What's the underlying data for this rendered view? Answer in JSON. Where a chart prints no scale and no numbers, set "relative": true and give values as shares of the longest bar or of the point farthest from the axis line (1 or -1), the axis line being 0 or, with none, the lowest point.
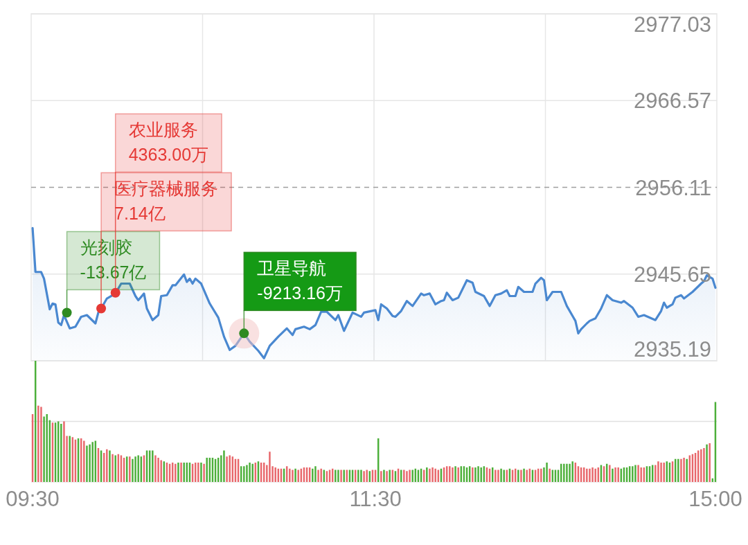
{
  "chart_data": [
    {
      "type": "area",
      "ylim": [
        2935.19,
        2977.03
      ],
      "categories": [
        null,
        null,
        null,
        null,
        null,
        null,
        null,
        null,
        null,
        null,
        null,
        null,
        null,
        null,
        null,
        null,
        null,
        null,
        null,
        null,
        null,
        null,
        null,
        null,
        null,
        null,
        null,
        null,
        null,
        null,
        null,
        null,
        null,
        null,
        null,
        null,
        null,
        null,
        null,
        null,
        null,
        null,
        null,
        null,
        null,
        null,
        null,
        null,
        null,
        null,
        null,
        null,
        null,
        null,
        null,
        null,
        null,
        null,
        null,
        null,
        null,
        null,
        null,
        null,
        null,
        null,
        null,
        null,
        null,
        null,
        null,
        null,
        null,
        null,
        null,
        null,
        null,
        null,
        null,
        null,
        null,
        null,
        null,
        null,
        null,
        null,
        null,
        null,
        null,
        null,
        null,
        null,
        null,
        null,
        null,
        null,
        null,
        null,
        null,
        null,
        null,
        null,
        null,
        null,
        null,
        null,
        null,
        null,
        null,
        null,
        null,
        null,
        null,
        null,
        null,
        null,
        null,
        null,
        null,
        null,
        null,
        null,
        null,
        null,
        null,
        null,
        null,
        null,
        null,
        null,
        null,
        null,
        null,
        null,
        null,
        null,
        null,
        null,
        null,
        null,
        null,
        null,
        null,
        null,
        null,
        null,
        null,
        null,
        null,
        null,
        null,
        null,
        null,
        null,
        null,
        null,
        null,
        null,
        null,
        null,
        null,
        null,
        null,
        null,
        null,
        null,
        null,
        null,
        null,
        null,
        null,
        null,
        null,
        null,
        null,
        null,
        null,
        null,
        null,
        null,
        null,
        null,
        null,
        null,
        null,
        null,
        null,
        null,
        null,
        null,
        null,
        null,
        null,
        null,
        null,
        null,
        null,
        null,
        null,
        null,
        null,
        null,
        null,
        null,
        null,
        null,
        null,
        null,
        null,
        null,
        null,
        null,
        null,
        null,
        null,
        null,
        null,
        null,
        null,
        null,
        null,
        null,
        null,
        null,
        null,
        null,
        null,
        null,
        null,
        null,
        null,
        null,
        null,
        null,
        null,
        null,
        null,
        null,
        null,
        null
      ],
      "yticks": [
        2935.19,
        2945.65,
        2956.11,
        2966.57,
        2977.03
      ],
      "tick_labels": "y",
      "grid": true,
      "ref_lines": [
        {
          "axis": "y",
          "value": 2956.11,
          "color": "#9e9e9e",
          "line_style": "dashed"
        }
      ],
      "series": [
        {
          "color": "#4a88d0",
          "values": [
            2951.2,
            2945.9,
            null,
            2945.9,
            2945.1,
            null,
            2941.4,
            2942.1,
            2942.0,
            2939.8,
            2939.5,
            2940.7,
            null,
            2939.1,
            null,
            2939.3,
            null,
            2940.5,
            null,
            2940.7,
            null,
            null,
            2939.7,
            2941.0,
            2941.5,
            null,
            2942.7,
            null,
            null,
            2943.3,
            null,
            2944.5,
            null,
            2944.5,
            2944.5,
            null,
            2943.0,
            2942.5,
            null,
            2943.3,
            2941.5,
            null,
            2940.1,
            null,
            2940.7,
            2943.0,
            null,
            2943.1,
            null,
            2944.3,
            2944.3,
            null,
            null,
            2945.6,
            2944.7,
            2945.1,
            2944.5,
            2945.1,
            null,
            2944.5,
            null,
            null,
            2942.1,
            null,
            null,
            2940.4,
            null,
            2938.1,
            null,
            2936.5,
            null,
            2937.0,
            null,
            null,
            2938.5,
            null,
            2937.5,
            null,
            null,
            2936.4,
            null,
            2935.5,
            null,
            2937.0,
            null,
            null,
            2938.1,
            null,
            null,
            2939.1,
            null,
            2938.3,
            2939.0,
            null,
            null,
            2939.3,
            null,
            2939.0,
            null,
            2939.5,
            null,
            2941.1,
            null,
            2941.1,
            null,
            null,
            2940.1,
            2940.7,
            null,
            2938.8,
            null,
            null,
            2941.0,
            null,
            null,
            2940.5,
            2941.0,
            null,
            null,
            null,
            2941.3,
            2940.1,
            2942.0,
            null,
            2941.5,
            null,
            2940.6,
            2940.5,
            null,
            2941.2,
            null,
            2942.4,
            null,
            2941.8,
            null,
            null,
            2943.3,
            2943.1,
            null,
            2943.3,
            null,
            2942.0,
            null,
            2942.4,
            2942.5,
            2943.4,
            null,
            2942.5,
            null,
            2942.8,
            null,
            null,
            2944.9,
            null,
            2944.6,
            2943.5,
            null,
            null,
            2943.0,
            null,
            2941.8,
            null,
            2943.1,
            null,
            2943.3,
            null,
            2943.7,
            2943.0,
            null,
            2943.0,
            2944.1,
            null,
            2943.5,
            null,
            null,
            2943.5,
            2944.5,
            null,
            2945.2,
            2944.9,
            2942.5,
            null,
            2943.5,
            null,
            null,
            2943.5,
            null,
            2941.8,
            null,
            2940.6,
            2940.0,
            2938.5,
            2939.0,
            null,
            2939.7,
            2940.0,
            null,
            2940.3,
            null,
            2941.5,
            null,
            2943.1,
            null,
            2942.5,
            null,
            null,
            2942.2,
            2942.4,
            null,
            null,
            2941.6,
            null,
            2940.5,
            null,
            2940.7,
            null,
            null,
            null,
            2940.1,
            null,
            2941.2,
            2942.2,
            2941.6,
            null,
            2942.0,
            2942.8,
            null,
            2943.1,
            2942.7,
            null,
            null,
            2943.5,
            null,
            null,
            2944.5,
            2944.8,
            2945.5,
            null,
            2945.1,
            2944.0
          ]
        },
        {
          "type": "scatter",
          "color": "#2e8a22",
          "values": [
            null,
            null,
            null,
            null,
            null,
            null,
            null,
            null,
            null,
            null,
            null,
            null,
            2941.0,
            null,
            null,
            null,
            null,
            null,
            null,
            null,
            null,
            null,
            null,
            null,
            null,
            null,
            null,
            null,
            null,
            null,
            null,
            null,
            null,
            null,
            null,
            null,
            null,
            null,
            null,
            null,
            null,
            null,
            null,
            null,
            null,
            null,
            null,
            null,
            null,
            null,
            null,
            null,
            null,
            null,
            null,
            null,
            null,
            null,
            null,
            null,
            null,
            null,
            null,
            null,
            null,
            null,
            null,
            null,
            null,
            null,
            null,
            null,
            null,
            null,
            2938.5,
            null,
            null,
            null,
            null,
            null,
            null,
            null,
            null,
            null,
            null,
            null,
            null,
            null,
            null,
            null,
            null,
            null,
            null,
            null,
            null,
            null,
            null,
            null,
            null,
            null,
            null,
            null,
            null,
            null,
            null,
            null,
            null,
            null,
            null,
            null,
            null,
            null,
            null,
            null,
            null,
            null,
            null,
            null,
            null,
            null,
            null,
            null,
            null,
            null,
            null,
            null,
            null,
            null,
            null,
            null,
            null,
            null,
            null,
            null,
            null,
            null,
            null,
            null,
            null,
            null,
            null,
            null,
            null,
            null,
            null,
            null,
            null,
            null,
            null,
            null,
            null,
            null,
            null,
            null,
            null,
            null,
            null,
            null,
            null,
            null,
            null,
            null,
            null,
            null,
            null,
            null,
            null,
            null,
            null,
            null,
            null,
            null,
            null,
            null,
            null,
            null,
            null,
            null,
            null,
            null,
            null,
            null,
            null,
            null,
            null,
            null,
            null,
            null,
            null,
            null,
            null,
            null,
            null,
            null,
            null,
            null,
            null,
            null,
            null,
            null,
            null,
            null,
            null,
            null,
            null,
            null,
            null,
            null,
            null,
            null,
            null,
            null,
            null,
            null,
            null,
            null,
            null,
            null,
            null,
            null,
            null,
            null,
            null,
            null,
            null,
            null,
            null,
            null,
            null,
            null,
            null,
            null,
            null,
            null,
            null,
            null,
            null,
            null,
            null,
            null
          ]
        },
        {
          "type": "scatter",
          "color": "#e53935",
          "values": [
            null,
            null,
            null,
            null,
            null,
            null,
            null,
            null,
            null,
            null,
            null,
            null,
            null,
            null,
            null,
            null,
            null,
            null,
            null,
            null,
            null,
            null,
            null,
            null,
            2941.5,
            null,
            null,
            null,
            null,
            2943.4,
            null,
            null,
            null,
            null,
            null,
            null,
            null,
            null,
            null,
            null,
            null,
            null,
            null,
            null,
            null,
            null,
            null,
            null,
            null,
            null,
            null,
            null,
            null,
            null,
            null,
            null,
            null,
            null,
            null,
            null,
            null,
            null,
            null,
            null,
            null,
            null,
            null,
            null,
            null,
            null,
            null,
            null,
            null,
            null,
            null,
            null,
            null,
            null,
            null,
            null,
            null,
            null,
            null,
            null,
            null,
            null,
            null,
            null,
            null,
            null,
            null,
            null,
            null,
            null,
            null,
            null,
            null,
            null,
            null,
            null,
            null,
            null,
            null,
            null,
            null,
            null,
            null,
            null,
            null,
            null,
            null,
            null,
            null,
            null,
            null,
            null,
            null,
            null,
            null,
            null,
            null,
            null,
            null,
            null,
            null,
            null,
            null,
            null,
            null,
            null,
            null,
            null,
            null,
            null,
            null,
            null,
            null,
            null,
            null,
            null,
            null,
            null,
            null,
            null,
            null,
            null,
            null,
            null,
            null,
            null,
            null,
            null,
            null,
            null,
            null,
            null,
            null,
            null,
            null,
            null,
            null,
            null,
            null,
            null,
            null,
            null,
            null,
            null,
            null,
            null,
            null,
            null,
            null,
            null,
            null,
            null,
            null,
            null,
            null,
            null,
            null,
            null,
            null,
            null,
            null,
            null,
            null,
            null,
            null,
            null,
            null,
            null,
            null,
            null,
            null,
            null,
            null,
            null,
            null,
            null,
            null,
            null,
            null,
            null,
            null,
            null,
            null,
            null,
            null,
            null,
            null,
            null,
            null,
            null,
            null,
            null,
            null,
            null,
            null,
            null,
            null,
            null,
            null,
            null,
            null,
            null,
            null,
            null,
            null,
            null,
            null,
            null,
            null,
            null,
            null,
            null,
            null,
            null,
            null,
            null
          ]
        }
      ],
      "annotations": [
        "光刻胶\n-13.67亿",
        "医疗器械服务\n7.14亿",
        "农业服务\n4363.00万",
        "卫星导航\n-9213.16万"
      ]
    },
    {
      "type": "bar",
      "relative": true,
      "categories": [
        "09:30",
        null,
        null,
        null,
        null,
        null,
        null,
        null,
        null,
        null,
        null,
        null,
        null,
        null,
        null,
        null,
        null,
        null,
        null,
        null,
        null,
        null,
        null,
        null,
        null,
        null,
        null,
        null,
        null,
        null,
        null,
        null,
        null,
        null,
        null,
        null,
        null,
        null,
        null,
        null,
        null,
        null,
        null,
        null,
        null,
        null,
        null,
        null,
        null,
        null,
        null,
        null,
        null,
        null,
        null,
        null,
        null,
        null,
        null,
        null,
        null,
        null,
        null,
        null,
        null,
        null,
        null,
        null,
        null,
        null,
        null,
        null,
        null,
        null,
        null,
        null,
        null,
        null,
        null,
        null,
        null,
        null,
        null,
        null,
        null,
        null,
        null,
        null,
        null,
        null,
        null,
        null,
        null,
        null,
        null,
        null,
        null,
        null,
        null,
        null,
        null,
        null,
        null,
        null,
        null,
        null,
        null,
        null,
        null,
        null,
        null,
        null,
        null,
        null,
        null,
        null,
        null,
        null,
        null,
        null,
        "11:30",
        null,
        null,
        null,
        null,
        null,
        null,
        null,
        null,
        null,
        null,
        null,
        null,
        null,
        null,
        null,
        null,
        null,
        null,
        null,
        null,
        null,
        null,
        null,
        null,
        null,
        null,
        null,
        null,
        null,
        null,
        null,
        null,
        null,
        null,
        null,
        null,
        null,
        null,
        null,
        null,
        null,
        null,
        null,
        null,
        null,
        null,
        null,
        null,
        null,
        null,
        null,
        null,
        null,
        null,
        null,
        null,
        null,
        null,
        null,
        null,
        null,
        null,
        null,
        null,
        null,
        null,
        null,
        null,
        null,
        null,
        null,
        null,
        null,
        null,
        null,
        null,
        null,
        null,
        null,
        null,
        null,
        null,
        null,
        null,
        null,
        null,
        null,
        null,
        null,
        null,
        null,
        null,
        null,
        null,
        null,
        null,
        null,
        null,
        null,
        null,
        null,
        null,
        null,
        null,
        null,
        null,
        null,
        null,
        null,
        null,
        null,
        null,
        null,
        null,
        null,
        null,
        null,
        null,
        "15:00"
      ],
      "tick_labels": "x",
      "ref_lines": [
        {
          "axis": "y",
          "value": 0.5,
          "color": "#e0e0e0"
        }
      ],
      "values": [
        0.56,
        1,
        0.63,
        0.62,
        0.54,
        0.56,
        0.51,
        0.49,
        0.49,
        0.5,
        0.48,
        0.5,
        0.38,
        0.38,
        0.37,
        0.35,
        0.36,
        0.36,
        0.34,
        0.3,
        0.31,
        0.33,
        0.34,
        0.28,
        0.26,
        0.24,
        0.27,
        0.26,
        0.23,
        0.22,
        0.23,
        0.22,
        0.2,
        0.21,
        0.21,
        0.19,
        0.21,
        0.22,
        0.21,
        0.22,
        0.26,
        0.26,
        0.26,
        0.22,
        0.2,
        0.18,
        0.17,
        0.16,
        0.15,
        0.16,
        0.15,
        0.16,
        0.16,
        0.16,
        0.16,
        0.16,
        0.15,
        0.16,
        0.16,
        0.16,
        0.15,
        0.2,
        0.2,
        0.2,
        0.19,
        0.2,
        0.22,
        0.26,
        0.21,
        0.22,
        0.21,
        0.19,
        0.19,
        0.13,
        0.13,
        0.14,
        0.16,
        0.15,
        0.16,
        0.17,
        0.16,
        0.16,
        0.14,
        0.25,
        0.13,
        0.12,
        0.11,
        0.11,
        0.11,
        0.13,
        0.11,
        0.1,
        0.11,
        0.1,
        0.11,
        0.12,
        0.12,
        0.12,
        0.11,
        0.13,
        0.1,
        0.11,
        0.1,
        0.09,
        0.1,
        0.11,
        0.1,
        0.1,
        0.1,
        0.1,
        0.1,
        0.1,
        0.1,
        0.1,
        0.1,
        0.1,
        0.09,
        0.1,
        0.09,
        0.1,
        0.1,
        0.36,
        0.09,
        0.1,
        0.09,
        0.1,
        0.1,
        0.09,
        0.11,
        0.1,
        0.1,
        0.09,
        0.1,
        0.1,
        0.11,
        0.1,
        0.11,
        0.1,
        0.12,
        0.11,
        0.12,
        0.11,
        0.1,
        0.11,
        0.12,
        0.13,
        0.13,
        0.12,
        0.13,
        0.12,
        0.13,
        0.13,
        0.12,
        0.13,
        0.12,
        0.12,
        0.13,
        0.12,
        0.13,
        0.12,
        0.11,
        0.12,
        0.1,
        0.1,
        0.11,
        0.1,
        0.1,
        0.11,
        0.1,
        0.11,
        0.1,
        0.1,
        0.11,
        0.1,
        0.11,
        0.1,
        0.1,
        0.11,
        0.11,
        0.12,
        0.16,
        0.11,
        0.1,
        0.1,
        0.1,
        0.15,
        0.15,
        0.15,
        0.15,
        0.17,
        0.16,
        0.13,
        0.12,
        0.12,
        0.11,
        0.11,
        0.12,
        0.11,
        0.12,
        0.14,
        0.13,
        0.15,
        0.14,
        0.11,
        0.12,
        0.12,
        0.11,
        0.12,
        0.12,
        0.13,
        0.13,
        0.14,
        0.14,
        0.12,
        0.12,
        0.13,
        0.13,
        0.14,
        0.14,
        0.17,
        0.16,
        0.16,
        0.17,
        0.16,
        0.17,
        0.19,
        0.19,
        0.19,
        0.2,
        0.19,
        0.22,
        0.23,
        0.24,
        0.26,
        0.27,
        0.28,
        0.31,
        0.32,
        0.03,
        0.66
      ],
      "colors": [
        "#e8676b",
        "#4caf3a",
        "#e8676b",
        "#e8676b",
        "#4caf3a",
        "#4caf3a",
        "#4caf3a",
        "#e8676b",
        "#4caf3a",
        "#4caf3a",
        "#4caf3a",
        "#e8676b",
        "#e8676b",
        "#4caf3a",
        "#e8676b",
        "#e8676b",
        "#4caf3a",
        "#e8676b",
        "#e8676b",
        "#4caf3a",
        "#4caf3a",
        "#4caf3a",
        "#4caf3a",
        "#e8676b",
        "#4caf3a",
        "#e8676b",
        "#e8676b",
        "#4caf3a",
        "#e8676b",
        "#4caf3a",
        "#e8676b",
        "#e8676b",
        "#e8676b",
        "#4caf3a",
        "#e8676b",
        "#4caf3a",
        "#4caf3a",
        "#4caf3a",
        "#4caf3a",
        "#e8676b",
        "#4caf3a",
        "#4caf3a",
        "#4caf3a",
        "#e8676b",
        "#e8676b",
        "#e8676b",
        "#4caf3a",
        "#e8676b",
        "#e8676b",
        "#e8676b",
        "#e8676b",
        "#4caf3a",
        "#e8676b",
        "#4caf3a",
        "#4caf3a",
        "#4caf3a",
        "#e8676b",
        "#e8676b",
        "#e8676b",
        "#4caf3a",
        "#e8676b",
        "#4caf3a",
        "#4caf3a",
        "#4caf3a",
        "#4caf3a",
        "#4caf3a",
        "#4caf3a",
        "#4caf3a",
        "#e8676b",
        "#e8676b",
        "#e8676b",
        "#e8676b",
        "#e8676b",
        "#4caf3a",
        "#4caf3a",
        "#4caf3a",
        "#4caf3a",
        "#4caf3a",
        "#e8676b",
        "#4caf3a",
        "#e8676b",
        "#e8676b",
        "#e8676b",
        "#e8676b",
        "#e8676b",
        "#e8676b",
        "#e8676b",
        "#e8676b",
        "#4caf3a",
        "#e8676b",
        "#e8676b",
        "#e8676b",
        "#4caf3a",
        "#e8676b",
        "#e8676b",
        "#e8676b",
        "#e8676b",
        "#e8676b",
        "#4caf3a",
        "#4caf3a",
        "#e8676b",
        "#e8676b",
        "#4caf3a",
        "#e8676b",
        "#e8676b",
        "#e8676b",
        "#4caf3a",
        "#4caf3a",
        "#e8676b",
        "#4caf3a",
        "#e8676b",
        "#4caf3a",
        "#4caf3a",
        "#e8676b",
        "#4caf3a",
        "#4caf3a",
        "#e8676b",
        "#e8676b",
        "#4caf3a",
        "#e8676b",
        "#e8676b",
        "#4caf3a",
        "#e8676b",
        "#4caf3a",
        "#e8676b",
        "#4caf3a",
        "#e8676b",
        "#4caf3a",
        "#e8676b",
        "#4caf3a",
        "#e8676b",
        "#e8676b",
        "#e8676b",
        "#4caf3a",
        "#4caf3a",
        "#4caf3a",
        "#4caf3a",
        "#e8676b",
        "#4caf3a",
        "#e8676b",
        "#e8676b",
        "#e8676b",
        "#e8676b",
        "#4caf3a",
        "#e8676b",
        "#e8676b",
        "#e8676b",
        "#e8676b",
        "#4caf3a",
        "#e8676b",
        "#4caf3a",
        "#4caf3a",
        "#4caf3a",
        "#4caf3a",
        "#e8676b",
        "#4caf3a",
        "#4caf3a",
        "#4caf3a",
        "#4caf3a",
        "#e8676b",
        "#e8676b",
        "#4caf3a",
        "#e8676b",
        "#e8676b",
        "#4caf3a",
        "#4caf3a",
        "#e8676b",
        "#4caf3a",
        "#e8676b",
        "#e8676b",
        "#4caf3a",
        "#e8676b",
        "#4caf3a",
        "#e8676b",
        "#e8676b",
        "#4caf3a",
        "#e8676b",
        "#e8676b",
        "#e8676b",
        "#4caf3a",
        "#4caf3a",
        "#e8676b",
        "#4caf3a",
        "#4caf3a",
        "#4caf3a",
        "#4caf3a",
        "#4caf3a",
        "#4caf3a",
        "#4caf3a",
        "#4caf3a",
        "#e8676b",
        "#e8676b",
        "#e8676b",
        "#e8676b",
        "#e8676b",
        "#e8676b",
        "#e8676b",
        "#e8676b",
        "#e8676b",
        "#4caf3a",
        "#e8676b",
        "#4caf3a",
        "#e8676b",
        "#4caf3a",
        "#e8676b",
        "#e8676b",
        "#4caf3a",
        "#4caf3a",
        "#4caf3a",
        "#4caf3a",
        "#4caf3a",
        "#4caf3a",
        "#e8676b",
        "#e8676b",
        "#e8676b",
        "#4caf3a",
        "#4caf3a",
        "#4caf3a",
        "#e8676b",
        "#e8676b",
        "#e8676b",
        "#e8676b",
        "#4caf3a",
        "#4caf3a",
        "#e8676b",
        "#4caf3a",
        "#4caf3a",
        "#e8676b",
        "#e8676b",
        "#4caf3a",
        "#e8676b",
        "#e8676b",
        "#e8676b",
        "#e8676b",
        "#e8676b",
        "#e8676b",
        "#4caf3a",
        "#e8676b",
        "#4caf3a",
        "#4caf3a"
      ]
    }
  ]
}
